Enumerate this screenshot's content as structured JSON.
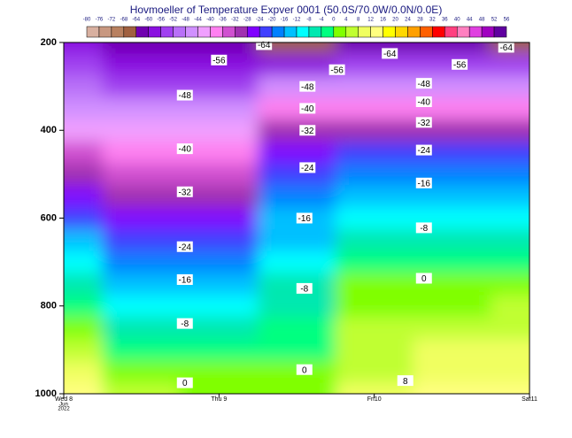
{
  "chart_data": {
    "type": "contour",
    "title": "Hovmoeller of Temperature Expver 0001 (50.0S/70.0W/0.0N/0.0E)",
    "levels": [
      -80,
      -76,
      -72,
      -68,
      -64,
      -60,
      -56,
      -52,
      -48,
      -44,
      -40,
      -36,
      -32,
      -28,
      -24,
      -20,
      -16,
      -12,
      -8,
      -4,
      0,
      4,
      8,
      12,
      16,
      20,
      24,
      28,
      32,
      36,
      40,
      44,
      48,
      52,
      56
    ],
    "colors": [
      "#d8b0a0",
      "#c89880",
      "#b88060",
      "#a06040",
      "#7000b0",
      "#8a10e0",
      "#a040f0",
      "#b870f8",
      "#d090ff",
      "#f0a0ff",
      "#ff80f0",
      "#d050d0",
      "#a030b0",
      "#8000ff",
      "#4040ff",
      "#0080ff",
      "#00c0ff",
      "#00ffff",
      "#00e8b0",
      "#00ff80",
      "#80ff00",
      "#c0ff30",
      "#f0ff60",
      "#ffff80",
      "#ffff00",
      "#ffd800",
      "#ffa000",
      "#ff6000",
      "#ff0000",
      "#ff4080",
      "#ff80c0",
      "#e040e0",
      "#a000c0",
      "#6000a0"
    ],
    "x": [
      0,
      0.5,
      1,
      1.5,
      2,
      2.5,
      3
    ],
    "y": [
      200,
      250,
      300,
      350,
      400,
      450,
      500,
      550,
      600,
      650,
      700,
      750,
      800,
      850,
      900,
      950,
      1000
    ],
    "z": [
      [
        -58,
        -55,
        -52,
        -46,
        -41,
        -36,
        -31,
        -26,
        -21,
        -16,
        -11,
        -6,
        -1,
        3,
        7,
        11,
        15
      ],
      [
        -62,
        -58,
        -53,
        -48,
        -43,
        -39,
        -35,
        -31,
        -27,
        -23,
        -19,
        -15,
        -11,
        -7,
        -3,
        1,
        4
      ],
      [
        -62,
        -58,
        -53,
        -48,
        -43,
        -40,
        -36,
        -32,
        -28,
        -23,
        -19,
        -14,
        -10,
        -6,
        -3,
        0,
        2
      ],
      [
        -66,
        -58,
        -48,
        -40,
        -32,
        -27,
        -23,
        -19,
        -16,
        -13,
        -10,
        -8,
        -6,
        -4,
        -2,
        0,
        2
      ],
      [
        -64,
        -56,
        -48,
        -38,
        -30,
        -24,
        -19,
        -14,
        -11,
        -7,
        -3,
        0,
        2,
        4,
        6,
        7,
        8
      ],
      [
        -62,
        -54,
        -47,
        -38,
        -30,
        -24,
        -18,
        -13,
        -9,
        -6,
        -3,
        0,
        3,
        6,
        8,
        10,
        12
      ],
      [
        -66,
        -56,
        -48,
        -38,
        -30,
        -23,
        -18,
        -13,
        -9,
        -5,
        -2,
        1,
        4,
        7,
        9,
        11,
        13
      ]
    ],
    "contour_labels": [
      {
        "value": -64,
        "x": 1.29,
        "y": 205
      },
      {
        "value": -56,
        "x": 1.0,
        "y": 240
      },
      {
        "value": -56,
        "x": 1.76,
        "y": 262
      },
      {
        "value": -64,
        "x": 2.1,
        "y": 225
      },
      {
        "value": -56,
        "x": 2.55,
        "y": 250
      },
      {
        "value": -64,
        "x": 2.85,
        "y": 211
      },
      {
        "value": -48,
        "x": 0.78,
        "y": 320
      },
      {
        "value": -48,
        "x": 1.57,
        "y": 300
      },
      {
        "value": -48,
        "x": 2.32,
        "y": 293
      },
      {
        "value": -40,
        "x": 0.78,
        "y": 442
      },
      {
        "value": -40,
        "x": 1.57,
        "y": 350
      },
      {
        "value": -40,
        "x": 2.32,
        "y": 335
      },
      {
        "value": -32,
        "x": 0.78,
        "y": 540
      },
      {
        "value": -32,
        "x": 1.57,
        "y": 400
      },
      {
        "value": -32,
        "x": 2.32,
        "y": 382
      },
      {
        "value": -24,
        "x": 0.78,
        "y": 665
      },
      {
        "value": -24,
        "x": 1.57,
        "y": 485
      },
      {
        "value": -24,
        "x": 2.32,
        "y": 445
      },
      {
        "value": -16,
        "x": 0.78,
        "y": 740
      },
      {
        "value": -16,
        "x": 1.55,
        "y": 600
      },
      {
        "value": -16,
        "x": 2.32,
        "y": 520
      },
      {
        "value": -8,
        "x": 0.78,
        "y": 840
      },
      {
        "value": -8,
        "x": 1.55,
        "y": 760
      },
      {
        "value": -8,
        "x": 2.32,
        "y": 622
      },
      {
        "value": 0,
        "x": 0.78,
        "y": 975
      },
      {
        "value": 0,
        "x": 1.55,
        "y": 945
      },
      {
        "value": 0,
        "x": 2.32,
        "y": 737
      },
      {
        "value": 8,
        "x": 2.2,
        "y": 970
      }
    ],
    "xlim": [
      0,
      3
    ],
    "xticks": [
      {
        "value": 0,
        "label": "Wed 8"
      },
      {
        "value": 1,
        "label": "Thu 9"
      },
      {
        "value": 2,
        "label": "Fri10"
      },
      {
        "value": 3,
        "label": "Sat11"
      }
    ],
    "xtick_sublabels": [
      "Jun",
      "2022"
    ],
    "ylim": [
      1000,
      200
    ],
    "yticks": [
      200,
      400,
      600,
      800,
      1000
    ]
  }
}
